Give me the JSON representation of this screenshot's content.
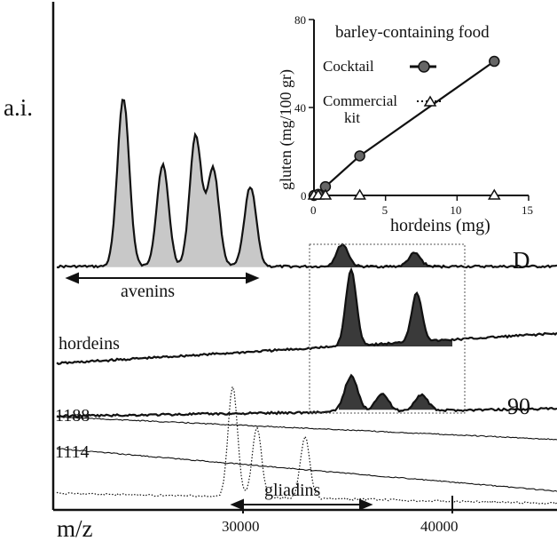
{
  "chart_data": [
    {
      "type": "line",
      "title": "",
      "xlabel": "m/z",
      "ylabel": "a.i.",
      "xlim": [
        22000,
        45000
      ],
      "x_ticks": [
        30000,
        40000
      ],
      "x_tick_labels": [
        "30000",
        "40000"
      ],
      "series": [
        {
          "name": "D",
          "style": "solid-thick",
          "baseline": 300,
          "filled_regions": [
            {
              "label": "avenins",
              "color": "#c8c8c8",
              "x_range": [
                24000,
                33000
              ],
              "peaks": [
                [
                  25200,
                  190
                ],
                [
                  27000,
                  115
                ],
                [
                  28500,
                  147
                ],
                [
                  29300,
                  110
                ],
                [
                  31000,
                  90
                ]
              ]
            },
            {
              "label": "hordeins",
              "color": "#3a3a3a",
              "x_range": [
                34000,
                40000
              ],
              "peaks": [
                [
                  35200,
                  25
                ],
                [
                  38500,
                  15
                ]
              ]
            }
          ]
        },
        {
          "name": "hordeins",
          "style": "solid-thick",
          "baseline": 395,
          "filled_regions": [
            {
              "label": "hordeins",
              "color": "#3a3a3a",
              "x_range": [
                34800,
                40300
              ],
              "peaks": [
                [
                  35600,
                  85
                ],
                [
                  38600,
                  55
                ]
              ]
            }
          ]
        },
        {
          "name": "90",
          "style": "solid-thick",
          "baseline": 465,
          "filled_regions": [
            {
              "label": "hordeins",
              "color": "#3a3a3a",
              "x_range": [
                35000,
                40300
              ],
              "peaks": [
                [
                  35600,
                  40
                ],
                [
                  37000,
                  20
                ],
                [
                  38800,
                  18
                ]
              ]
            }
          ]
        },
        {
          "name": "1188",
          "style": "solid-thin",
          "baseline": 480
        },
        {
          "name": "1114",
          "style": "solid-thin",
          "baseline": 525
        },
        {
          "name": "gliadins",
          "style": "dotted",
          "baseline": 560,
          "peaks": [
            [
              30200,
              125
            ],
            [
              31300,
              78
            ],
            [
              33500,
              70
            ]
          ]
        }
      ],
      "annotations": [
        {
          "text": "avenins",
          "x_range": [
            24000,
            31000
          ]
        },
        {
          "text": "gliadins",
          "x_range": [
            30400,
            35500
          ]
        },
        {
          "text": "D"
        },
        {
          "text": "hordeins"
        },
        {
          "text": "90"
        },
        {
          "text": "1188"
        },
        {
          "text": "1114"
        }
      ]
    },
    {
      "type": "line",
      "title": "barley-containing food",
      "xlabel": "hordeins (mg)",
      "ylabel": "gluten (mg/100 gr)",
      "xlim": [
        0,
        15
      ],
      "ylim": [
        0,
        80
      ],
      "x_ticks": [
        0,
        5,
        10,
        15
      ],
      "y_ticks": [
        0,
        40,
        80
      ],
      "legend": "right",
      "series": [
        {
          "name": "Cocktail",
          "marker": "circle",
          "line": "solid",
          "x": [
            0,
            0.3,
            0.8,
            3.2,
            12.6
          ],
          "y": [
            0,
            0.5,
            4,
            18,
            61
          ]
        },
        {
          "name": "Commercial kit",
          "marker": "triangle",
          "line": "dotted",
          "x": [
            0,
            0.3,
            0.8,
            3.2,
            12.6
          ],
          "y": [
            0,
            0,
            0,
            0,
            0
          ]
        }
      ]
    }
  ],
  "labels": {
    "ai": "a.i.",
    "mz": "m/z",
    "tick_30000": "30000",
    "tick_40000": "40000",
    "D": "D",
    "hordeins": "hordeins",
    "t90": "90",
    "t1188": "1188",
    "t1114": "1114",
    "avenins": "avenins",
    "gliadins": "gliadins",
    "inset_title": "barley-containing food",
    "inset_xlabel": "hordeins (mg)",
    "inset_ylabel": "gluten (mg/100 gr)",
    "legend_cocktail": "Cocktail",
    "legend_commercial_1": "Commercial",
    "legend_commercial_2": "kit",
    "ix0": "0",
    "ix5": "5",
    "ix10": "10",
    "ix15": "15",
    "iy0": "0",
    "iy40": "40",
    "iy80": "80"
  }
}
